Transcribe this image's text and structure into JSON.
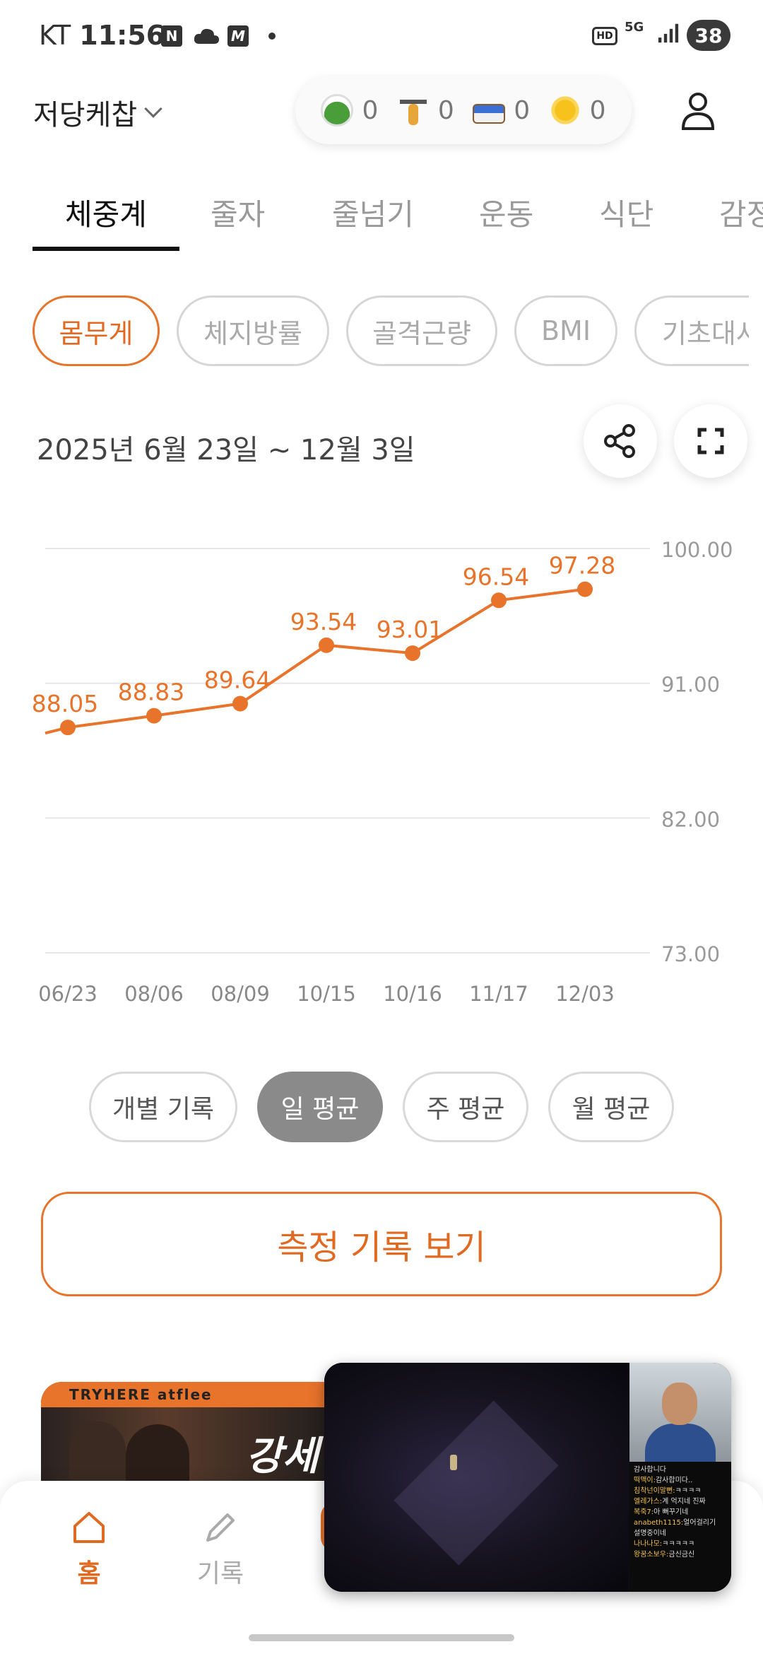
{
  "status_bar": {
    "carrier": "KT",
    "time": "11:56",
    "notif_icons": [
      "N",
      "cloud",
      "M"
    ],
    "network": "5G",
    "hd": "HD",
    "battery": "38"
  },
  "header": {
    "app_title": "저당케찹",
    "counts": [
      {
        "icon": "salad-icon",
        "value": "0"
      },
      {
        "icon": "weightlifter-icon",
        "value": "0"
      },
      {
        "icon": "bed-icon",
        "value": "0"
      },
      {
        "icon": "sun-icon",
        "value": "0"
      }
    ]
  },
  "tabs": [
    {
      "label": "체중계",
      "active": true
    },
    {
      "label": "줄자",
      "active": false
    },
    {
      "label": "줄넘기",
      "active": false
    },
    {
      "label": "운동",
      "active": false
    },
    {
      "label": "식단",
      "active": false
    },
    {
      "label": "감정",
      "active": false
    }
  ],
  "metric_chips": [
    {
      "label": "몸무게",
      "active": true
    },
    {
      "label": "체지방률",
      "active": false
    },
    {
      "label": "골격근량",
      "active": false
    },
    {
      "label": "BMI",
      "active": false
    },
    {
      "label": "기초대사",
      "active": false
    }
  ],
  "date_range": "2025년 6월 23일 ~ 12월 3일",
  "chart_data": {
    "type": "line",
    "categories": [
      "06/23",
      "08/06",
      "08/09",
      "10/15",
      "10/16",
      "11/17",
      "12/03"
    ],
    "values": [
      88.05,
      88.83,
      89.64,
      93.54,
      93.01,
      96.54,
      97.28
    ],
    "data_labels": [
      "88.05",
      "88.83",
      "89.64",
      "93.54",
      "93.01",
      "96.54",
      "97.28"
    ],
    "y_ticks": [
      "100.00",
      "91.00",
      "82.00",
      "73.00"
    ],
    "ylim": [
      73,
      100
    ],
    "color": "#e8732a",
    "grid": true
  },
  "aggregation": [
    {
      "label": "개별 기록",
      "active": false
    },
    {
      "label": "일 평균",
      "active": true
    },
    {
      "label": "주 평균",
      "active": false
    },
    {
      "label": "월 평균",
      "active": false
    }
  ],
  "record_button": "측정 기록 보기",
  "banner": {
    "stripe": "TRYHERE  atflee",
    "big": "강세"
  },
  "bottom_nav": [
    {
      "label": "홈",
      "icon": "home-icon",
      "active": true
    },
    {
      "label": "기록",
      "icon": "pencil-icon",
      "active": false
    }
  ],
  "pip_chat": [
    {
      "name": "",
      "text": "감사합니다"
    },
    {
      "name": "떡맥이:",
      "text": "감사합미다.."
    },
    {
      "name": "침착넌이말뻔:",
      "text": "ㅋㅋㅋㅋ"
    },
    {
      "name": "엘레가스:",
      "text": "계 억지네 진짜"
    },
    {
      "name": "복죽7:",
      "text": "아 뻐꾸기네"
    },
    {
      "name": "anabeth1115:",
      "text": "얼어걸리기"
    },
    {
      "name": "",
      "text": "설명중이네"
    },
    {
      "name": "나나나모:",
      "text": "ㅋㅋㅋㅋㅋ"
    },
    {
      "name": "왕꿈소보우:",
      "text": "금신금신"
    }
  ]
}
